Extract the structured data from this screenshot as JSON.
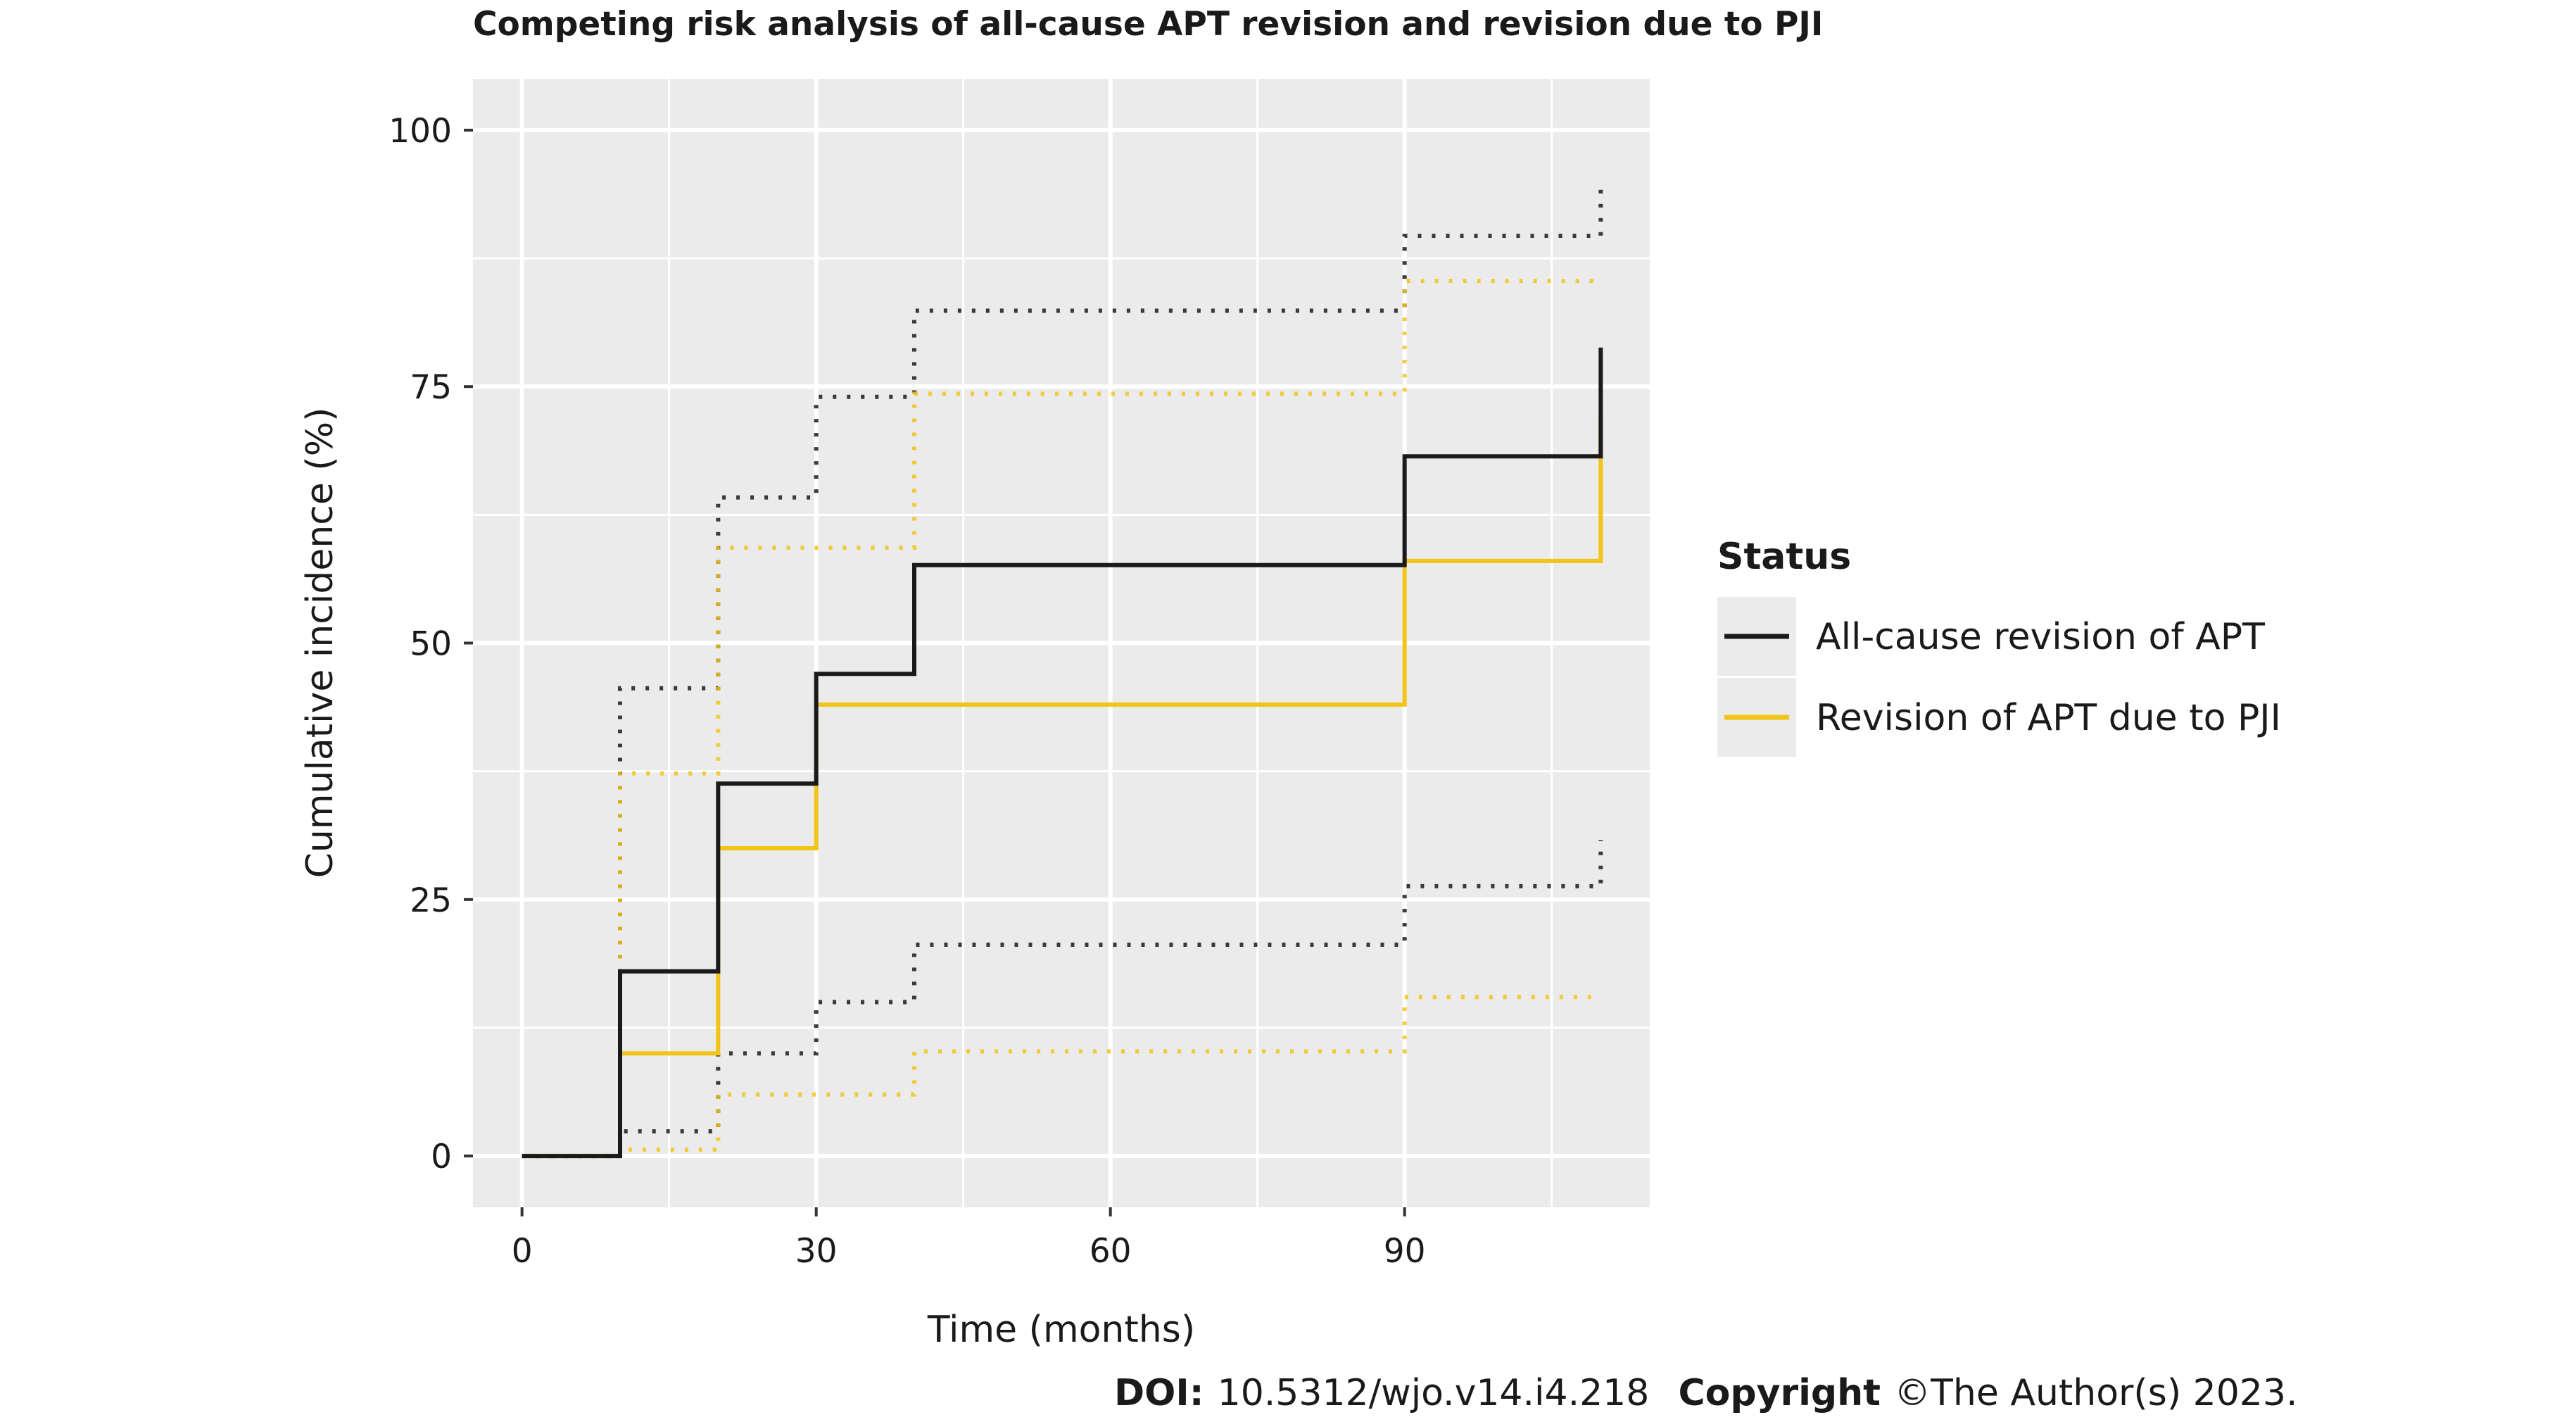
{
  "chart_data": {
    "type": "line",
    "title": "Competing risk analysis of all-cause APT revision and revision due to PJI",
    "xlabel": "Time (months)",
    "ylabel": "Cumulative incidence (%)",
    "xlim": [
      -5,
      115
    ],
    "ylim": [
      -5,
      105
    ],
    "x_ticks": [
      0,
      30,
      60,
      90
    ],
    "y_ticks": [
      0,
      25,
      50,
      75,
      100
    ],
    "grid": true,
    "step": true,
    "legend": {
      "title": "Status",
      "position": "right",
      "entries": [
        "All-cause revision of APT",
        "Revision of APT due to PJI"
      ]
    },
    "series": [
      {
        "name": "All-cause revision of APT",
        "color": "#1a1a1a",
        "x": [
          0,
          10,
          20,
          30,
          40,
          90,
          110
        ],
        "estimate": [
          0,
          18,
          36.3,
          47,
          57.6,
          68.2,
          78.8
        ],
        "ci_upper": [
          0,
          45.6,
          64.2,
          74,
          82.4,
          89.7,
          94.5
        ],
        "ci_lower": [
          0,
          2.4,
          10,
          15,
          20.6,
          26.3,
          30.8
        ]
      },
      {
        "name": "Revision of APT due to PJI",
        "color": "#f2c419",
        "x": [
          0,
          10,
          20,
          30,
          40,
          90,
          110
        ],
        "estimate": [
          0,
          10,
          30,
          44,
          44,
          58,
          72
        ],
        "ci_upper": [
          0,
          37.3,
          59.3,
          59.3,
          74.3,
          85.3,
          85.3
        ],
        "ci_lower": [
          0,
          0.6,
          6,
          6,
          10.2,
          15.5,
          15.5
        ]
      }
    ]
  },
  "footer": {
    "doi_label": "DOI:",
    "doi_value": "10.5312/wjo.v14.i4.218",
    "copyright_label": "Copyright",
    "copyright_value": "©The Author(s) 2023."
  }
}
